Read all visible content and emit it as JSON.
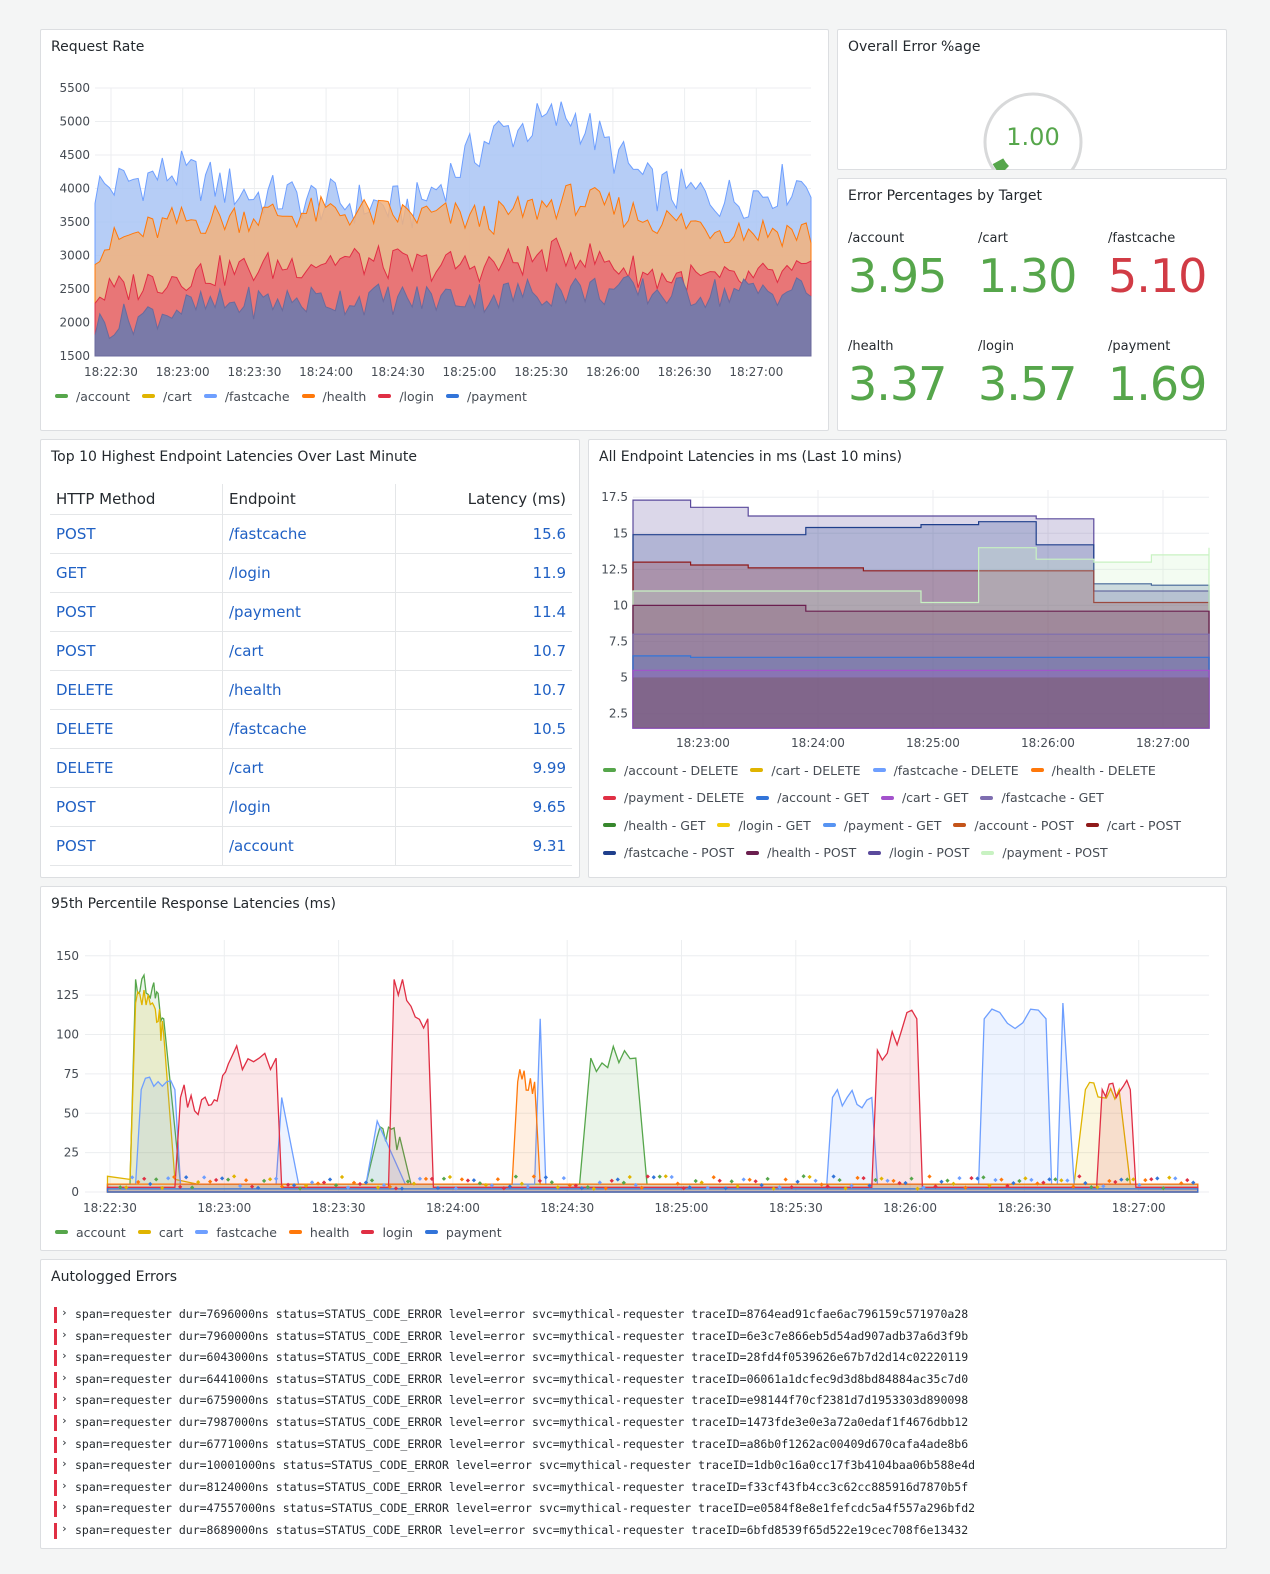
{
  "colors": {
    "account": "#56a64b",
    "cart": "#e0b400",
    "fastcache": "#6e9fff",
    "health": "#ff780a",
    "login": "#e02f44",
    "payment": "#3274d9",
    "green_stat": "#56a64b",
    "red_stat": "#d13b45",
    "link": "#1f60c4",
    "error_bar": "#e02f44"
  },
  "request_rate": {
    "title": "Request Rate",
    "legend": [
      "/account",
      "/cart",
      "/fastcache",
      "/health",
      "/login",
      "/payment"
    ],
    "chart_data": {
      "type": "area",
      "title": "Request Rate",
      "ylim": [
        1500,
        5500
      ],
      "yticks": [
        "5500",
        "5000",
        "4500",
        "4000",
        "3500",
        "3000",
        "2500",
        "2000",
        "1500"
      ],
      "xticks": [
        "18:22:30",
        "18:23:00",
        "18:23:30",
        "18:24:00",
        "18:24:30",
        "18:25:00",
        "18:25:30",
        "18:26:00",
        "18:26:30",
        "18:27:00"
      ],
      "x": [
        "18:22:30",
        "18:23:00",
        "18:23:30",
        "18:24:00",
        "18:24:30",
        "18:25:00",
        "18:25:30",
        "18:26:00",
        "18:26:30",
        "18:27:00"
      ],
      "series": [
        {
          "name": "/fastcache",
          "values": [
            4000,
            4250,
            3900,
            3800,
            3700,
            4800,
            5100,
            4000,
            3850,
            4150
          ]
        },
        {
          "name": "/health",
          "values": [
            3100,
            3500,
            3600,
            3650,
            3600,
            3550,
            3850,
            3550,
            3400,
            3350
          ]
        },
        {
          "name": "/login",
          "values": [
            2400,
            2700,
            2800,
            2950,
            2850,
            2850,
            3050,
            2700,
            2600,
            2750
          ]
        },
        {
          "name": "/payment",
          "values": [
            1950,
            2200,
            2300,
            2350,
            2350,
            2400,
            2500,
            2450,
            2450,
            2500
          ]
        }
      ]
    }
  },
  "overall_error": {
    "title": "Overall Error %age",
    "value": "1.00",
    "fraction": 0.01
  },
  "error_by_target": {
    "title": "Error Percentages by Target",
    "items": [
      {
        "label": "/account",
        "value": "3.95",
        "color": "#56a64b"
      },
      {
        "label": "/cart",
        "value": "1.30",
        "color": "#56a64b"
      },
      {
        "label": "/fastcache",
        "value": "5.10",
        "color": "#d13b45"
      },
      {
        "label": "/health",
        "value": "3.37",
        "color": "#56a64b"
      },
      {
        "label": "/login",
        "value": "3.57",
        "color": "#56a64b"
      },
      {
        "label": "/payment",
        "value": "1.69",
        "color": "#56a64b"
      }
    ]
  },
  "top10": {
    "title": "Top 10 Highest Endpoint Latencies Over Last Minute",
    "headers": [
      "HTTP Method",
      "Endpoint",
      "Latency (ms)"
    ],
    "rows": [
      [
        "POST",
        "/fastcache",
        "15.6"
      ],
      [
        "GET",
        "/login",
        "11.9"
      ],
      [
        "POST",
        "/payment",
        "11.4"
      ],
      [
        "POST",
        "/cart",
        "10.7"
      ],
      [
        "DELETE",
        "/health",
        "10.7"
      ],
      [
        "DELETE",
        "/fastcache",
        "10.5"
      ],
      [
        "DELETE",
        "/cart",
        "9.99"
      ],
      [
        "POST",
        "/login",
        "9.65"
      ],
      [
        "POST",
        "/account",
        "9.31"
      ]
    ]
  },
  "all_latencies": {
    "title": "All Endpoint Latencies in ms (Last 10 mins)",
    "legend": [
      {
        "name": "/account - DELETE",
        "color": "#56a64b"
      },
      {
        "name": "/cart - DELETE",
        "color": "#e0b400"
      },
      {
        "name": "/fastcache - DELETE",
        "color": "#6e9fff"
      },
      {
        "name": "/health - DELETE",
        "color": "#ff780a"
      },
      {
        "name": "/payment - DELETE",
        "color": "#e02f44"
      },
      {
        "name": "/account - GET",
        "color": "#3274d9"
      },
      {
        "name": "/cart - GET",
        "color": "#a352cc"
      },
      {
        "name": "/fastcache - GET",
        "color": "#7e6eb0"
      },
      {
        "name": "/health - GET",
        "color": "#37872d"
      },
      {
        "name": "/login - GET",
        "color": "#f2cc0c"
      },
      {
        "name": "/payment - GET",
        "color": "#5794f2"
      },
      {
        "name": "/account - POST",
        "color": "#c4541a"
      },
      {
        "name": "/cart - POST",
        "color": "#8f1a1a"
      },
      {
        "name": "/fastcache - POST",
        "color": "#1f3f8c"
      },
      {
        "name": "/health - POST",
        "color": "#6b1f4f"
      },
      {
        "name": "/login - POST",
        "color": "#5a4a9c"
      },
      {
        "name": "/payment - POST",
        "color": "#c8f2c2"
      }
    ],
    "chart_data": {
      "type": "area",
      "title": "All Endpoint Latencies in ms (Last 10 mins)",
      "ylim": [
        1.5,
        18
      ],
      "yticks": [
        "17.5",
        "15",
        "12.5",
        "10",
        "7.5",
        "5",
        "2.5"
      ],
      "xticks": [
        "18:23:00",
        "18:24:00",
        "18:25:00",
        "18:26:00",
        "18:27:00"
      ],
      "x": [
        "18:22:30",
        "18:23:00",
        "18:23:30",
        "18:24:00",
        "18:24:30",
        "18:25:00",
        "18:25:30",
        "18:26:00",
        "18:26:30",
        "18:27:00",
        "18:27:30"
      ],
      "series": [
        {
          "name": "/login - POST",
          "values": [
            17.3,
            16.8,
            16.2,
            16.2,
            16.2,
            16.2,
            16.2,
            16.0,
            11.0,
            11.0,
            11.0
          ]
        },
        {
          "name": "/fastcache - POST",
          "values": [
            14.9,
            14.9,
            14.9,
            15.4,
            15.4,
            15.6,
            15.8,
            14.2,
            11.5,
            11.4,
            11.0
          ]
        },
        {
          "name": "/cart - POST",
          "values": [
            13.0,
            12.8,
            12.6,
            12.6,
            12.4,
            12.4,
            12.4,
            12.4,
            10.2,
            10.2,
            10.2
          ]
        },
        {
          "name": "/payment - POST",
          "values": [
            11.0,
            11.0,
            11.0,
            11.0,
            11.0,
            10.2,
            14.0,
            13.2,
            13.0,
            13.5,
            14.0
          ]
        },
        {
          "name": "/health - POST",
          "values": [
            10.0,
            10.0,
            10.0,
            9.6,
            9.6,
            9.6,
            9.6,
            9.6,
            9.6,
            9.6,
            9.6
          ]
        },
        {
          "name": "/fastcache - GET",
          "values": [
            8.0,
            8.0,
            8.0,
            8.0,
            8.0,
            8.0,
            8.0,
            8.0,
            8.0,
            8.0,
            8.0
          ]
        },
        {
          "name": "/account - GET",
          "values": [
            6.5,
            6.4,
            6.4,
            6.4,
            6.4,
            6.4,
            6.4,
            6.4,
            6.4,
            6.4,
            6.4
          ]
        },
        {
          "name": "/cart - GET",
          "values": [
            5.5,
            5.5,
            5.5,
            5.5,
            5.5,
            5.5,
            5.5,
            5.5,
            5.5,
            5.5,
            5.5
          ]
        }
      ]
    }
  },
  "p95": {
    "title": "95th Percentile Response Latencies (ms)",
    "legend": [
      "account",
      "cart",
      "fastcache",
      "health",
      "login",
      "payment"
    ],
    "chart_data": {
      "type": "area",
      "title": "95th Percentile Response Latencies (ms)",
      "ylim": [
        0,
        160
      ],
      "yticks": [
        "150",
        "125",
        "100",
        "75",
        "50",
        "25",
        "0"
      ],
      "xticks": [
        "18:22:30",
        "18:23:00",
        "18:23:30",
        "18:24:00",
        "18:24:30",
        "18:25:00",
        "18:25:30",
        "18:26:00",
        "18:26:30",
        "18:27:00"
      ],
      "series": [
        {
          "name": "account",
          "values": [
            [
              0.02,
              5
            ],
            [
              0.04,
              5
            ],
            [
              0.045,
              135
            ],
            [
              0.06,
              130
            ],
            [
              0.07,
              110
            ],
            [
              0.085,
              5
            ],
            [
              0.25,
              5
            ],
            [
              0.26,
              35
            ],
            [
              0.28,
              35
            ],
            [
              0.29,
              5
            ],
            [
              0.44,
              5
            ],
            [
              0.45,
              85
            ],
            [
              0.49,
              85
            ],
            [
              0.5,
              5
            ],
            [
              0.99,
              5
            ]
          ]
        },
        {
          "name": "cart",
          "values": [
            [
              0.02,
              10
            ],
            [
              0.04,
              8
            ],
            [
              0.045,
              120
            ],
            [
              0.06,
              120
            ],
            [
              0.07,
              100
            ],
            [
              0.08,
              8
            ],
            [
              0.1,
              5
            ],
            [
              0.88,
              5
            ],
            [
              0.89,
              65
            ],
            [
              0.92,
              65
            ],
            [
              0.93,
              5
            ],
            [
              0.99,
              5
            ]
          ]
        },
        {
          "name": "fastcache",
          "values": [
            [
              0.02,
              5
            ],
            [
              0.045,
              5
            ],
            [
              0.05,
              65
            ],
            [
              0.08,
              65
            ],
            [
              0.085,
              5
            ],
            [
              0.17,
              5
            ],
            [
              0.175,
              60
            ],
            [
              0.19,
              5
            ],
            [
              0.25,
              5
            ],
            [
              0.26,
              45
            ],
            [
              0.285,
              5
            ],
            [
              0.4,
              5
            ],
            [
              0.405,
              110
            ],
            [
              0.41,
              5
            ],
            [
              0.66,
              5
            ],
            [
              0.665,
              60
            ],
            [
              0.7,
              60
            ],
            [
              0.705,
              5
            ],
            [
              0.795,
              5
            ],
            [
              0.8,
              110
            ],
            [
              0.855,
              110
            ],
            [
              0.86,
              5
            ],
            [
              0.865,
              5
            ],
            [
              0.87,
              120
            ],
            [
              0.88,
              5
            ],
            [
              0.99,
              5
            ]
          ]
        },
        {
          "name": "health",
          "values": [
            [
              0.02,
              5
            ],
            [
              0.38,
              5
            ],
            [
              0.385,
              70
            ],
            [
              0.4,
              70
            ],
            [
              0.405,
              5
            ],
            [
              0.99,
              5
            ]
          ]
        },
        {
          "name": "login",
          "values": [
            [
              0.02,
              3
            ],
            [
              0.08,
              3
            ],
            [
              0.085,
              60
            ],
            [
              0.11,
              55
            ],
            [
              0.13,
              85
            ],
            [
              0.17,
              85
            ],
            [
              0.175,
              3
            ],
            [
              0.27,
              3
            ],
            [
              0.275,
              135
            ],
            [
              0.305,
              110
            ],
            [
              0.31,
              3
            ],
            [
              0.7,
              3
            ],
            [
              0.705,
              90
            ],
            [
              0.74,
              110
            ],
            [
              0.745,
              3
            ],
            [
              0.9,
              3
            ],
            [
              0.905,
              65
            ],
            [
              0.93,
              65
            ],
            [
              0.935,
              3
            ],
            [
              0.99,
              3
            ]
          ]
        },
        {
          "name": "payment",
          "values": [
            [
              0.02,
              2
            ],
            [
              0.99,
              2
            ]
          ]
        }
      ]
    }
  },
  "errors": {
    "title": "Autologged Errors",
    "lines": [
      "span=requester dur=7696000ns status=STATUS_CODE_ERROR level=error svc=mythical-requester traceID=8764ead91cfae6ac796159c571970a28",
      "span=requester dur=7960000ns status=STATUS_CODE_ERROR level=error svc=mythical-requester traceID=6e3c7e866eb5d54ad907adb37a6d3f9b",
      "span=requester dur=6043000ns status=STATUS_CODE_ERROR level=error svc=mythical-requester traceID=28fd4f0539626e67b7d2d14c02220119",
      "span=requester dur=6441000ns status=STATUS_CODE_ERROR level=error svc=mythical-requester traceID=06061a1dcfec9d3d8bd84884ac35c7d0",
      "span=requester dur=6759000ns status=STATUS_CODE_ERROR level=error svc=mythical-requester traceID=e98144f70cf2381d7d1953303d890098",
      "span=requester dur=7987000ns status=STATUS_CODE_ERROR level=error svc=mythical-requester traceID=1473fde3e0e3a72a0edaf1f4676dbb12",
      "span=requester dur=6771000ns status=STATUS_CODE_ERROR level=error svc=mythical-requester traceID=a86b0f1262ac00409d670cafa4ade8b6",
      "span=requester dur=10001000ns status=STATUS_CODE_ERROR level=error svc=mythical-requester traceID=1db0c16a0cc17f3b4104baa06b588e4d",
      "span=requester dur=8124000ns status=STATUS_CODE_ERROR level=error svc=mythical-requester traceID=f33cf43fb4cc3c62cc885916d7870b5f",
      "span=requester dur=47557000ns status=STATUS_CODE_ERROR level=error svc=mythical-requester traceID=e0584f8e8e1fefcdc5a4f557a296bfd2",
      "span=requester dur=8689000ns status=STATUS_CODE_ERROR level=error svc=mythical-requester traceID=6bfd8539f65d522e19cec708f6e13432"
    ]
  }
}
